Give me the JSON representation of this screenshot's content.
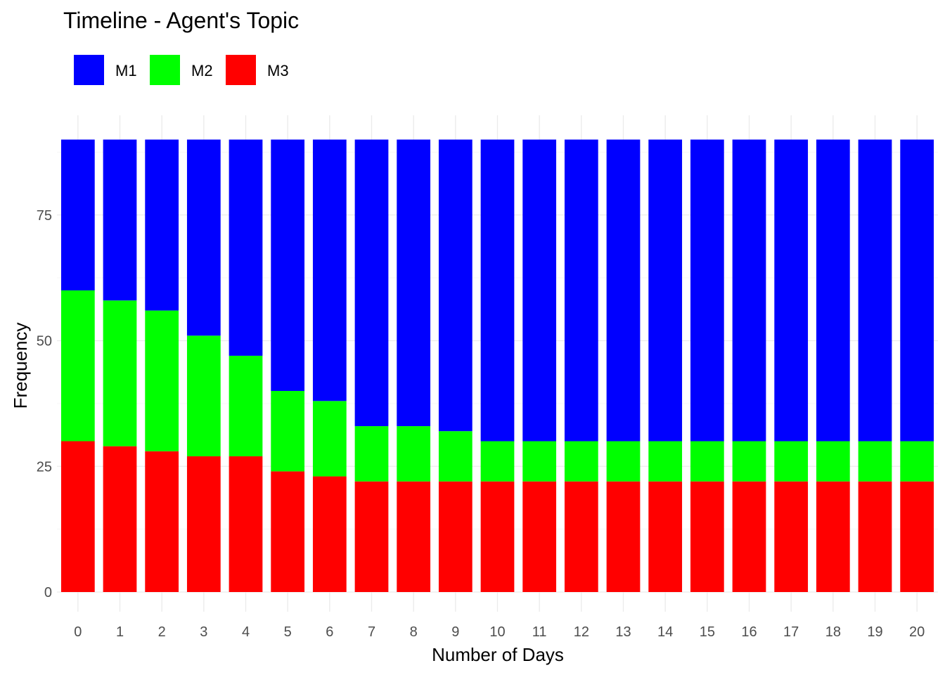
{
  "chart_data": {
    "type": "bar",
    "stacked": true,
    "title": "Timeline - Agent's Topic",
    "xlabel": "Number of Days",
    "ylabel": "Frequency",
    "ylim": [
      0,
      90
    ],
    "yticks": [
      0,
      25,
      50,
      75
    ],
    "grid": true,
    "legend_position": "top-left",
    "categories": [
      "0",
      "1",
      "2",
      "3",
      "4",
      "5",
      "6",
      "7",
      "8",
      "9",
      "10",
      "11",
      "12",
      "13",
      "14",
      "15",
      "16",
      "17",
      "18",
      "19",
      "20"
    ],
    "series": [
      {
        "name": "M3",
        "color": "#FF0000",
        "values": [
          30,
          29,
          28,
          27,
          27,
          24,
          23,
          22,
          22,
          22,
          22,
          22,
          22,
          22,
          22,
          22,
          22,
          22,
          22,
          22,
          22
        ]
      },
      {
        "name": "M2",
        "color": "#00FF00",
        "values": [
          30,
          29,
          28,
          24,
          20,
          16,
          15,
          11,
          11,
          10,
          8,
          8,
          8,
          8,
          8,
          8,
          8,
          8,
          8,
          8,
          8
        ]
      },
      {
        "name": "M1",
        "color": "#0000FF",
        "values": [
          30,
          32,
          34,
          39,
          43,
          50,
          52,
          57,
          57,
          58,
          60,
          60,
          60,
          60,
          60,
          60,
          60,
          60,
          60,
          60,
          60
        ]
      }
    ],
    "legend_order": [
      "M1",
      "M2",
      "M3"
    ]
  }
}
